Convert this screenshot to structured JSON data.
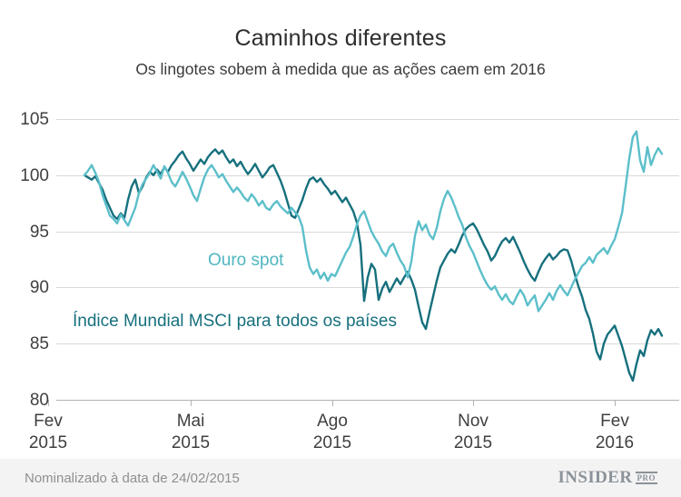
{
  "chart_data": {
    "type": "line",
    "title": "Caminhos diferentes",
    "subtitle": "Os lingotes sobem à medida que as ações caem em 2016",
    "note": "Nominalizado à data de 24/02/2015",
    "ylim": [
      80,
      105
    ],
    "y_ticks": [
      105,
      100,
      95,
      90,
      85,
      80
    ],
    "x_ticks": [
      {
        "month": "Fev",
        "year": "2015"
      },
      {
        "month": "Mai",
        "year": "2015"
      },
      {
        "month": "Ago",
        "year": "2015"
      },
      {
        "month": "Nov",
        "year": "2015"
      },
      {
        "month": "Fev",
        "year": "2016"
      }
    ],
    "grid": true,
    "legend_position": "inline-labels",
    "series": [
      {
        "id": "ouro-spot",
        "name": "Ouro spot",
        "color": "#5cbfca",
        "values": [
          100.0,
          100.4,
          100.9,
          100.2,
          99.4,
          98.2,
          97.3,
          96.4,
          96.1,
          95.7,
          96.5,
          96.0,
          95.5,
          96.3,
          97.1,
          98.4,
          99.2,
          99.7,
          100.2,
          100.9,
          100.3,
          99.7,
          100.8,
          100.2,
          99.4,
          99.0,
          99.6,
          100.3,
          99.7,
          99.0,
          98.2,
          97.7,
          98.8,
          99.8,
          100.5,
          100.9,
          100.4,
          99.8,
          100.1,
          99.5,
          99.0,
          98.5,
          98.9,
          98.5,
          98.0,
          97.7,
          98.3,
          97.9,
          97.3,
          97.7,
          97.1,
          96.9,
          97.4,
          97.7,
          97.2,
          96.9,
          96.6,
          97.1,
          96.7,
          96.3,
          95.4,
          93.3,
          91.8,
          91.2,
          91.6,
          90.8,
          91.3,
          90.6,
          91.2,
          91.0,
          91.7,
          92.4,
          93.1,
          93.6,
          94.5,
          95.6,
          96.4,
          96.8,
          95.9,
          95.0,
          94.4,
          93.9,
          93.2,
          92.8,
          93.6,
          93.9,
          93.1,
          92.4,
          91.9,
          90.9,
          92.3,
          94.6,
          95.9,
          95.1,
          95.6,
          94.7,
          94.3,
          95.3,
          96.8,
          97.9,
          98.6,
          98.0,
          97.2,
          96.3,
          95.6,
          94.5,
          93.7,
          93.1,
          92.3,
          91.5,
          90.8,
          90.2,
          89.8,
          90.1,
          89.4,
          88.9,
          89.4,
          88.8,
          88.5,
          89.2,
          89.8,
          89.3,
          88.4,
          88.9,
          89.3,
          87.9,
          88.4,
          88.9,
          89.5,
          88.9,
          89.7,
          90.2,
          89.7,
          89.3,
          90.0,
          90.7,
          91.3,
          91.9,
          92.2,
          92.7,
          92.2,
          92.9,
          93.2,
          93.5,
          93.0,
          93.7,
          94.3,
          95.4,
          96.6,
          99.0,
          101.5,
          103.4,
          103.9,
          101.3,
          100.3,
          102.5,
          100.9,
          101.8,
          102.4,
          101.9
        ]
      },
      {
        "id": "msci-world",
        "name": "Índice Mundial MSCI para todos os países",
        "color": "#16707d",
        "values": [
          100.0,
          99.8,
          99.6,
          99.9,
          99.3,
          98.7,
          97.8,
          97.1,
          96.4,
          96.1,
          96.6,
          96.2,
          97.8,
          99.0,
          99.6,
          98.4,
          99.0,
          99.8,
          100.3,
          100.0,
          100.5,
          100.1,
          100.7,
          100.3,
          100.9,
          101.3,
          101.8,
          102.1,
          101.5,
          101.0,
          100.4,
          100.9,
          101.4,
          101.0,
          101.6,
          102.0,
          102.3,
          101.9,
          102.2,
          101.6,
          101.1,
          101.4,
          100.8,
          101.2,
          100.6,
          100.1,
          100.5,
          101.0,
          100.4,
          99.8,
          100.2,
          100.7,
          100.9,
          100.2,
          99.5,
          98.6,
          97.5,
          96.4,
          96.2,
          97.0,
          97.8,
          98.8,
          99.6,
          99.8,
          99.4,
          99.7,
          99.2,
          98.8,
          98.3,
          98.6,
          98.1,
          97.6,
          98.0,
          97.4,
          96.8,
          95.8,
          93.8,
          88.8,
          90.9,
          92.1,
          91.6,
          88.9,
          89.9,
          90.5,
          89.6,
          90.2,
          90.8,
          90.3,
          90.9,
          91.4,
          90.7,
          89.8,
          88.3,
          86.9,
          86.3,
          87.8,
          89.2,
          90.6,
          91.8,
          92.4,
          93.0,
          93.4,
          93.1,
          93.8,
          94.6,
          95.2,
          95.5,
          95.7,
          95.2,
          94.5,
          93.8,
          93.2,
          92.4,
          92.8,
          93.5,
          94.1,
          94.4,
          94.0,
          94.5,
          93.8,
          93.1,
          92.3,
          91.6,
          91.0,
          90.6,
          91.4,
          92.1,
          92.6,
          93.0,
          92.5,
          92.8,
          93.2,
          93.4,
          93.3,
          92.4,
          91.2,
          90.1,
          89.2,
          88.0,
          87.2,
          85.9,
          84.3,
          83.6,
          85.0,
          85.8,
          86.2,
          86.6,
          85.7,
          84.8,
          83.6,
          82.4,
          81.7,
          83.2,
          84.4,
          83.9,
          85.3,
          86.2,
          85.8,
          86.3,
          85.7
        ]
      }
    ]
  },
  "footer": {
    "brand": "INSIDER",
    "brand_suffix": "PRO"
  }
}
